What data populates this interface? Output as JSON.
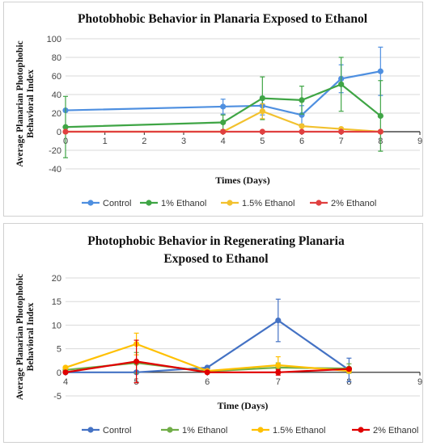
{
  "chart_data": [
    {
      "type": "line",
      "title": "Photobhobic Behavior in Planaria Exposed to Ethanol",
      "xlabel": "Times (Days)",
      "ylabel_lines": [
        "Average Planarian Photophobic",
        "Behavioral Index"
      ],
      "xlim": [
        0,
        9
      ],
      "ylim": [
        -40,
        100
      ],
      "xticks": [
        0,
        1,
        2,
        3,
        4,
        5,
        6,
        7,
        8,
        9
      ],
      "yticks": [
        -40,
        -20,
        0,
        20,
        40,
        60,
        80,
        100
      ],
      "grid": true,
      "legend_position": "bottom",
      "series": [
        {
          "name": "Control",
          "color": "#4e8fe0",
          "points": [
            [
              0,
              23
            ],
            [
              4,
              27
            ],
            [
              5,
              28
            ],
            [
              6,
              18
            ],
            [
              7,
              57
            ],
            [
              8,
              65
            ]
          ],
          "err": [
            null,
            8,
            10,
            10,
            15,
            26
          ]
        },
        {
          "name": "1% Ethanol",
          "color": "#3fa545",
          "points": [
            [
              0,
              5
            ],
            [
              4,
              10
            ],
            [
              5,
              36
            ],
            [
              6,
              34
            ],
            [
              7,
              51
            ],
            [
              8,
              17
            ]
          ],
          "err": [
            33,
            8,
            23,
            15,
            29,
            38
          ]
        },
        {
          "name": "1.5% Ethanol",
          "color": "#f2c12e",
          "points": [
            [
              0,
              0
            ],
            [
              4,
              0
            ],
            [
              5,
              22
            ],
            [
              6,
              6
            ],
            [
              7,
              3
            ],
            [
              8,
              0
            ]
          ],
          "err": [
            null,
            null,
            8,
            null,
            null,
            null
          ]
        },
        {
          "name": "2% Ethanol",
          "color": "#e04040",
          "points": [
            [
              0,
              0
            ],
            [
              4,
              0
            ],
            [
              5,
              0
            ],
            [
              6,
              0
            ],
            [
              7,
              0
            ],
            [
              8,
              0
            ]
          ],
          "err": [
            null,
            null,
            null,
            null,
            null,
            null
          ]
        }
      ]
    },
    {
      "type": "line",
      "title_lines": [
        "Photophobic Behavior in Regenerating Planaria",
        "Exposed to Ethanol"
      ],
      "xlabel": "Time (Days)",
      "ylabel_lines": [
        "Average Planarian Photophobic",
        "Behavioral Index"
      ],
      "xlim": [
        4,
        9
      ],
      "ylim": [
        -5,
        20
      ],
      "xticks": [
        4,
        5,
        6,
        7,
        8,
        9
      ],
      "yticks": [
        -5,
        0,
        5,
        10,
        15,
        20
      ],
      "grid": true,
      "legend_position": "bottom",
      "series": [
        {
          "name": "Control",
          "color": "#4472c4",
          "points": [
            [
              4,
              0
            ],
            [
              5,
              0
            ],
            [
              6,
              1
            ],
            [
              7,
              11
            ],
            [
              8,
              0.5
            ]
          ],
          "err": [
            null,
            null,
            null,
            4.5,
            2.5
          ]
        },
        {
          "name": "1% Ethanol",
          "color": "#70ad47",
          "points": [
            [
              4,
              0.5
            ],
            [
              5,
              2
            ],
            [
              6,
              0.2
            ],
            [
              7,
              1
            ],
            [
              8,
              0.8
            ]
          ],
          "err": [
            null,
            2.2,
            null,
            1,
            1
          ]
        },
        {
          "name": "1.5% Ethanol",
          "color": "#ffc000",
          "points": [
            [
              4,
              1
            ],
            [
              5,
              6
            ],
            [
              6,
              0.3
            ],
            [
              7,
              1.5
            ],
            [
              8,
              0.3
            ]
          ],
          "err": [
            null,
            2.3,
            null,
            1.8,
            null
          ]
        },
        {
          "name": "2% Ethanol",
          "color": "#e00000",
          "points": [
            [
              4,
              0
            ],
            [
              5,
              2.3
            ],
            [
              6,
              0
            ],
            [
              7,
              0
            ],
            [
              8,
              0.7
            ]
          ],
          "err": [
            null,
            4.5,
            null,
            0.6,
            null
          ]
        }
      ]
    }
  ]
}
